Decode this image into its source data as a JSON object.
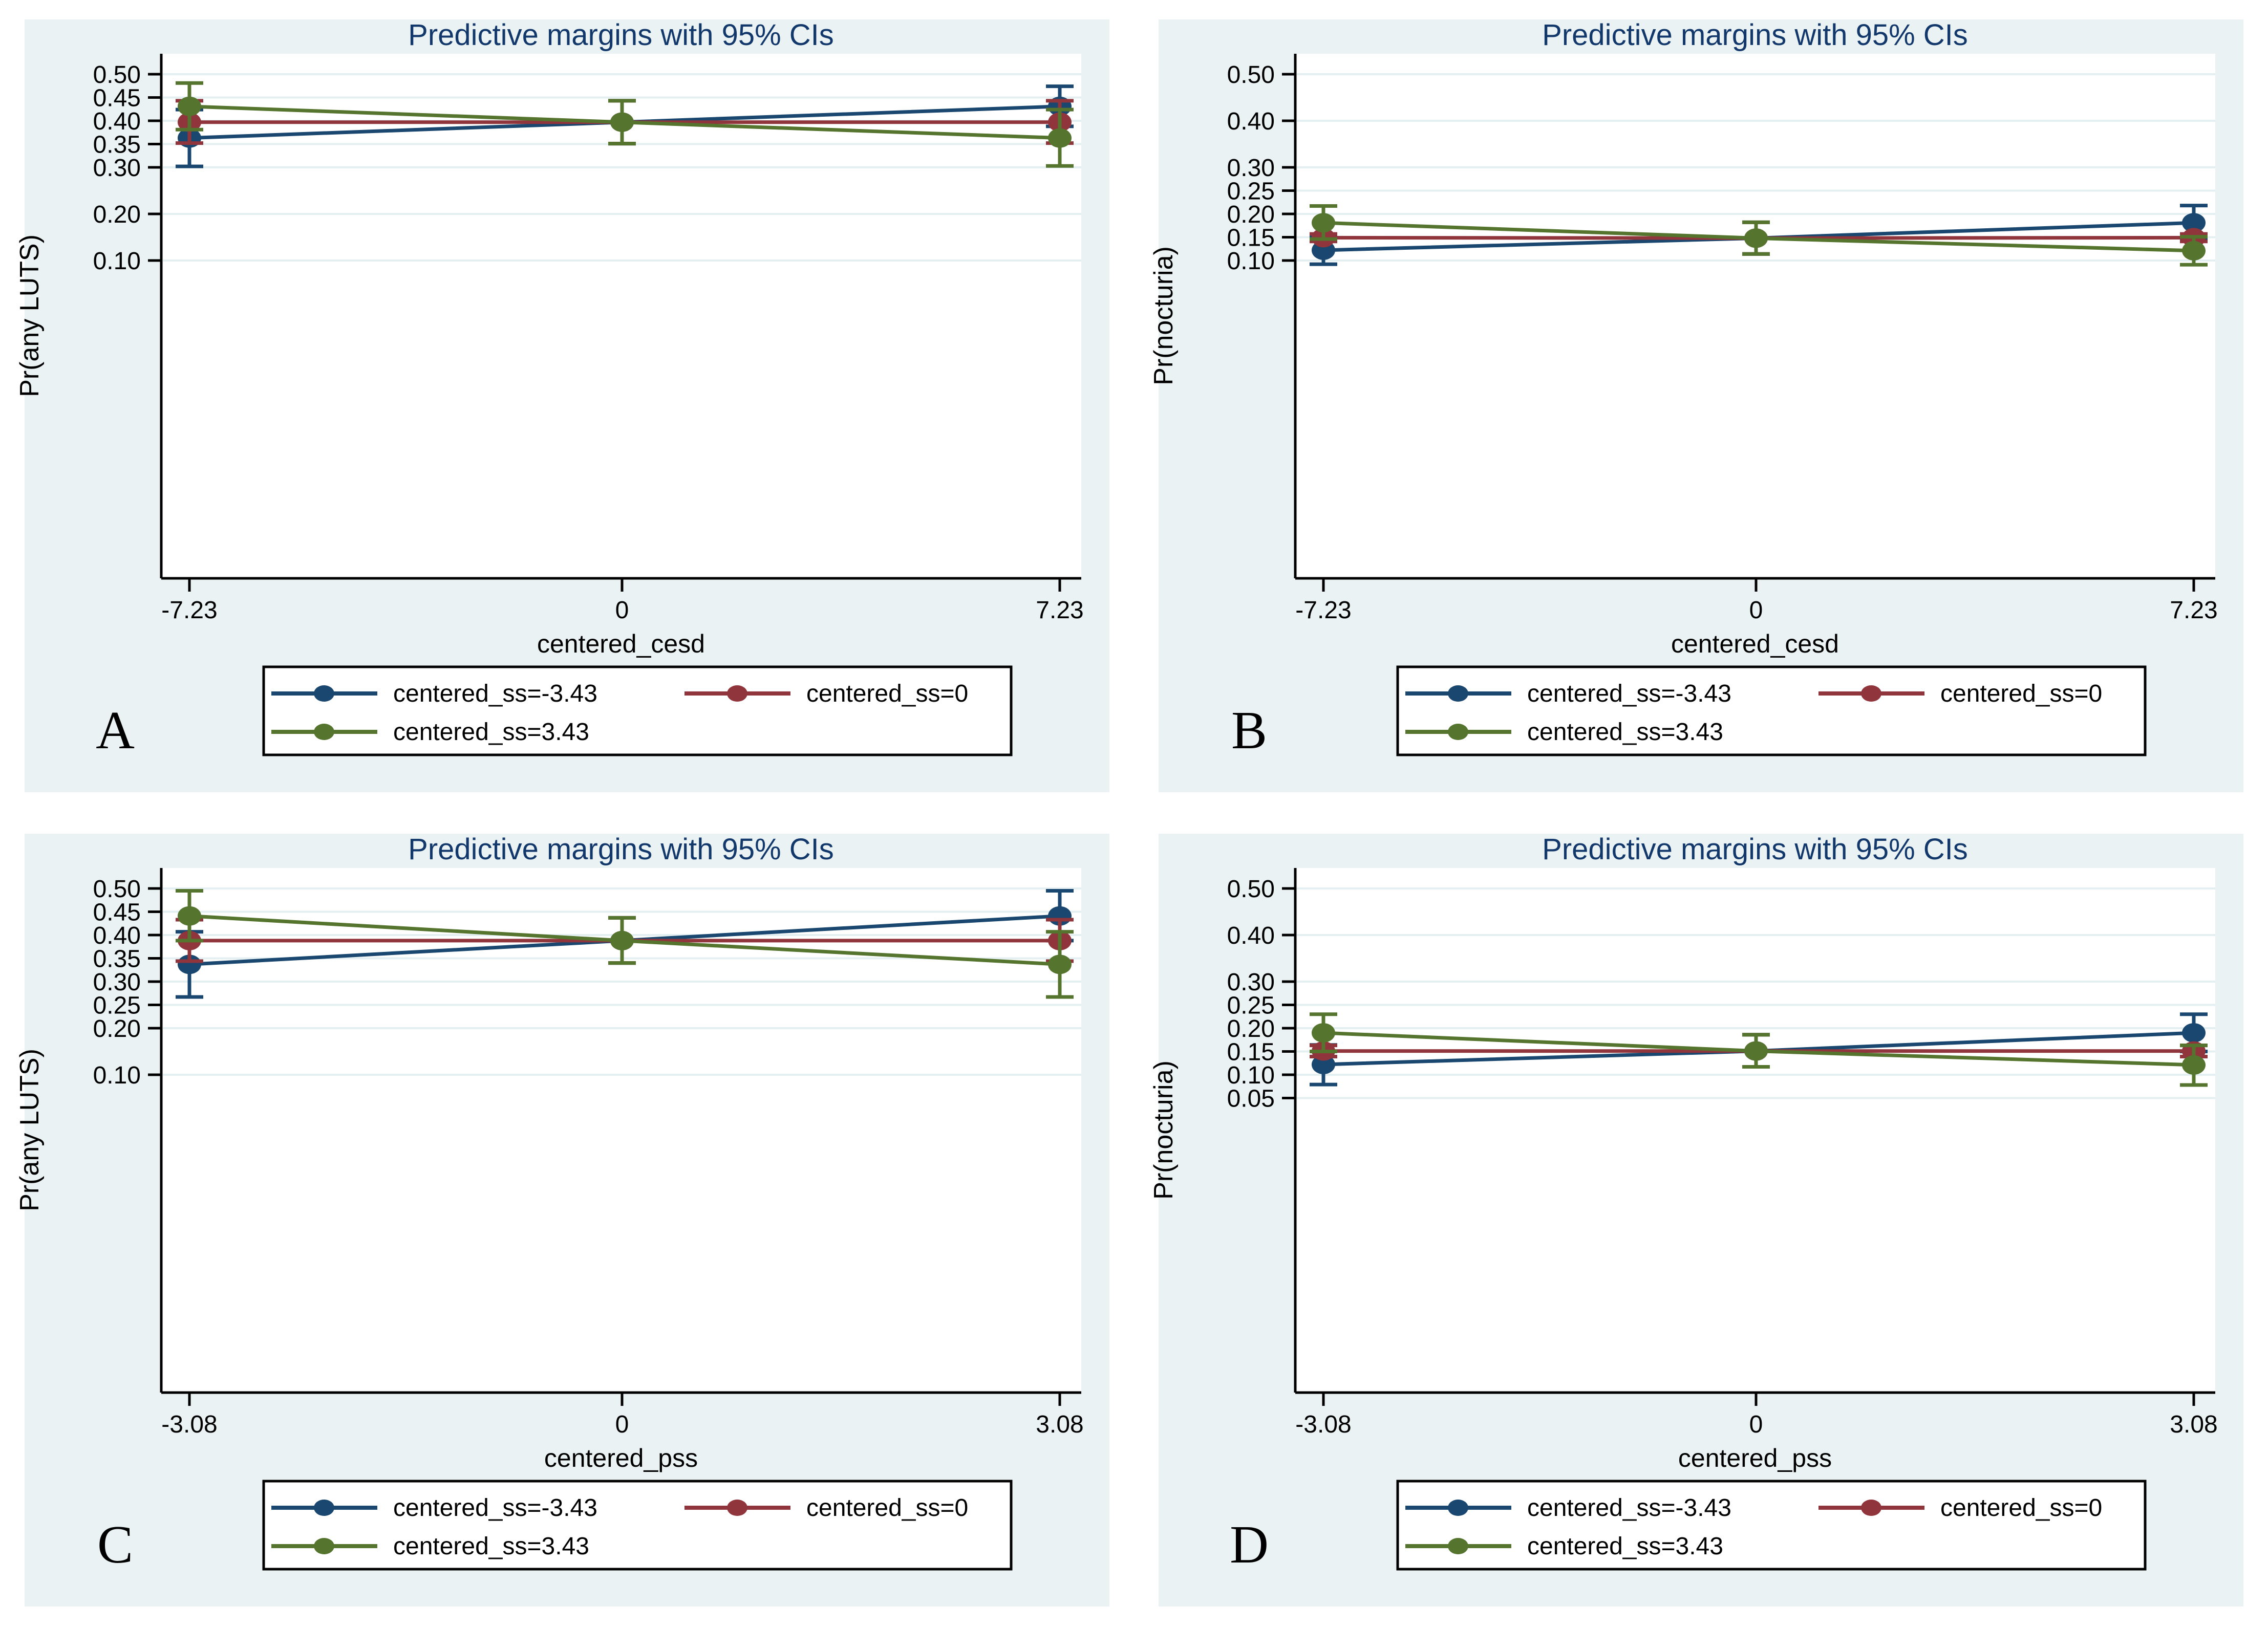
{
  "figure": {
    "page_background": "#ffffff",
    "panel_background": "#eaf2f3",
    "plot_background": "#ffffff",
    "grid_color": "#e4eff1",
    "axis_color": "#000000",
    "title_color": "#12386b",
    "series_colors": {
      "navy": "#1a476f",
      "maroon": "#90353b",
      "forest_green": "#55752f"
    }
  },
  "chart_data": [
    {
      "letter": "A",
      "type": "line",
      "title": "Predictive margins with 95% CIs",
      "ylabel": "Pr(any LUTS)",
      "xlabel": "centered_cesd",
      "x_tick_labels": [
        "-7.23",
        "0",
        "7.23"
      ],
      "y_ticks": [
        0.1,
        0.2,
        0.3,
        0.35,
        0.4,
        0.45,
        0.5
      ],
      "ylim": [
        0.1,
        0.5
      ],
      "grid": true,
      "legend_position": "below",
      "series": [
        {
          "name": "centered_ss=-3.43",
          "color": "#1a476f",
          "values": [
            0.363,
            0.397,
            0.431
          ],
          "ci_low": [
            0.302,
            0.351,
            0.388
          ],
          "ci_high": [
            0.424,
            0.443,
            0.474
          ]
        },
        {
          "name": "centered_ss=0",
          "color": "#90353b",
          "values": [
            0.397,
            0.397,
            0.397
          ],
          "ci_low": [
            0.352,
            0.351,
            0.352
          ],
          "ci_high": [
            0.443,
            0.443,
            0.443
          ]
        },
        {
          "name": "centered_ss=3.43",
          "color": "#55752f",
          "values": [
            0.431,
            0.397,
            0.363
          ],
          "ci_low": [
            0.381,
            0.351,
            0.303
          ],
          "ci_high": [
            0.481,
            0.443,
            0.424
          ]
        }
      ]
    },
    {
      "letter": "B",
      "type": "line",
      "title": "Predictive margins with 95% CIs",
      "ylabel": "Pr(nocturia)",
      "xlabel": "centered_cesd",
      "x_tick_labels": [
        "-7.23",
        "0",
        "7.23"
      ],
      "y_ticks": [
        0.1,
        0.15,
        0.2,
        0.25,
        0.3,
        0.4,
        0.5
      ],
      "ylim": [
        0.1,
        0.5
      ],
      "grid": true,
      "legend_position": "below",
      "series": [
        {
          "name": "centered_ss=-3.43",
          "color": "#1a476f",
          "values": [
            0.122,
            0.148,
            0.181
          ],
          "ci_low": [
            0.092,
            0.114,
            0.145
          ],
          "ci_high": [
            0.152,
            0.182,
            0.218
          ]
        },
        {
          "name": "centered_ss=0",
          "color": "#90353b",
          "values": [
            0.149,
            0.148,
            0.149
          ],
          "ci_low": [
            0.141,
            0.114,
            0.141
          ],
          "ci_high": [
            0.157,
            0.182,
            0.157
          ]
        },
        {
          "name": "centered_ss=3.43",
          "color": "#55752f",
          "values": [
            0.181,
            0.148,
            0.121
          ],
          "ci_low": [
            0.146,
            0.114,
            0.091
          ],
          "ci_high": [
            0.217,
            0.182,
            0.151
          ]
        }
      ]
    },
    {
      "letter": "C",
      "type": "line",
      "title": "Predictive margins with 95% CIs",
      "ylabel": "Pr(any LUTS)",
      "xlabel": "centered_pss",
      "x_tick_labels": [
        "-3.08",
        "0",
        "3.08"
      ],
      "y_ticks": [
        0.1,
        0.2,
        0.25,
        0.3,
        0.35,
        0.4,
        0.45,
        0.5
      ],
      "ylim": [
        0.1,
        0.5
      ],
      "grid": true,
      "legend_position": "below",
      "series": [
        {
          "name": "centered_ss=-3.43",
          "color": "#1a476f",
          "values": [
            0.337,
            0.388,
            0.441
          ],
          "ci_low": [
            0.267,
            0.34,
            0.388
          ],
          "ci_high": [
            0.407,
            0.437,
            0.495
          ]
        },
        {
          "name": "centered_ss=0",
          "color": "#90353b",
          "values": [
            0.388,
            0.388,
            0.388
          ],
          "ci_low": [
            0.344,
            0.34,
            0.344
          ],
          "ci_high": [
            0.433,
            0.437,
            0.433
          ]
        },
        {
          "name": "centered_ss=3.43",
          "color": "#55752f",
          "values": [
            0.441,
            0.388,
            0.337
          ],
          "ci_low": [
            0.388,
            0.34,
            0.267
          ],
          "ci_high": [
            0.495,
            0.437,
            0.407
          ]
        }
      ]
    },
    {
      "letter": "D",
      "type": "line",
      "title": "Predictive margins with 95% CIs",
      "ylabel": "Pr(nocturia)",
      "xlabel": "centered_pss",
      "x_tick_labels": [
        "-3.08",
        "0",
        "3.08"
      ],
      "y_ticks": [
        0.05,
        0.1,
        0.15,
        0.2,
        0.25,
        0.3,
        0.4,
        0.5
      ],
      "ylim": [
        0.05,
        0.5
      ],
      "grid": true,
      "legend_position": "below",
      "series": [
        {
          "name": "centered_ss=-3.43",
          "color": "#1a476f",
          "values": [
            0.122,
            0.151,
            0.19
          ],
          "ci_low": [
            0.079,
            0.117,
            0.15
          ],
          "ci_high": [
            0.164,
            0.186,
            0.23
          ]
        },
        {
          "name": "centered_ss=0",
          "color": "#90353b",
          "values": [
            0.151,
            0.151,
            0.151
          ],
          "ci_low": [
            0.139,
            0.117,
            0.139
          ],
          "ci_high": [
            0.163,
            0.186,
            0.163
          ]
        },
        {
          "name": "centered_ss=3.43",
          "color": "#55752f",
          "values": [
            0.19,
            0.151,
            0.121
          ],
          "ci_low": [
            0.15,
            0.117,
            0.078
          ],
          "ci_high": [
            0.23,
            0.186,
            0.163
          ]
        }
      ]
    }
  ]
}
